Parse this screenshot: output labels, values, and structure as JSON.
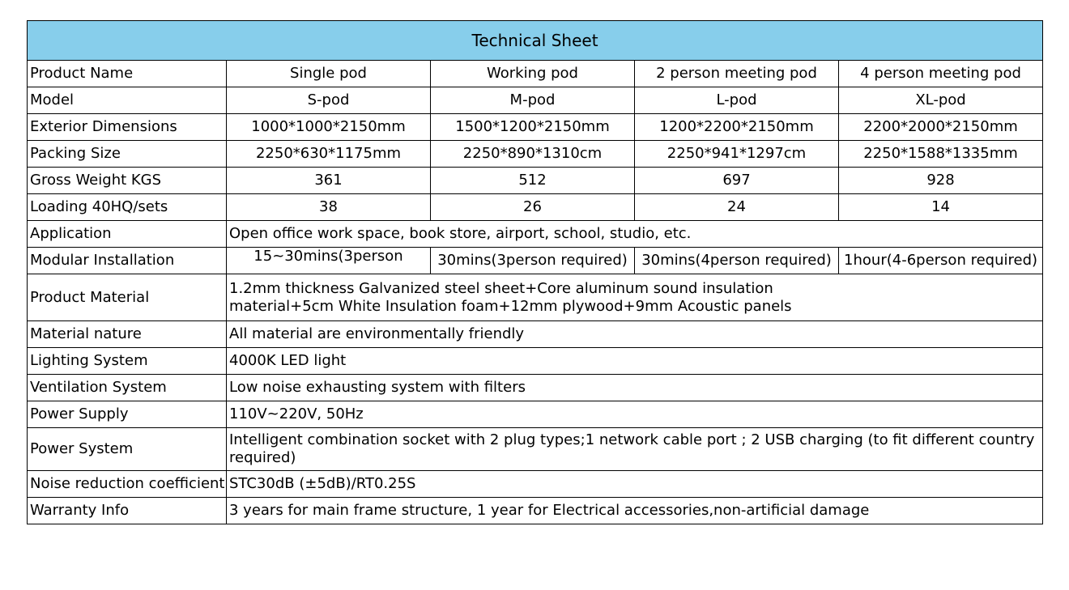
{
  "title": "Technical Sheet",
  "rows": {
    "product_name": {
      "label": "Product Name",
      "values": [
        "Single pod",
        "Working pod",
        "2 person meeting pod",
        "4 person meeting pod"
      ]
    },
    "model": {
      "label": "Model",
      "values": [
        "S-pod",
        "M-pod",
        "L-pod",
        "XL-pod"
      ]
    },
    "exterior_dimensions": {
      "label": "Exterior Dimensions",
      "values": [
        "1000*1000*2150mm",
        "1500*1200*2150mm",
        "1200*2200*2150mm",
        "2200*2000*2150mm"
      ]
    },
    "packing_size": {
      "label": "Packing Size",
      "values": [
        "2250*630*1175mm",
        "2250*890*1310cm",
        "2250*941*1297cm",
        "2250*1588*1335mm"
      ]
    },
    "gross_weight": {
      "label": "Gross Weight KGS",
      "values": [
        "361",
        "512",
        "697",
        "928"
      ]
    },
    "loading": {
      "label": "Loading 40HQ/sets",
      "values": [
        "38",
        "26",
        "24",
        "14"
      ]
    },
    "application": {
      "label": "Application",
      "value": "Open office work space, book store, airport, school, studio, etc."
    },
    "modular_installation": {
      "label": "Modular Installation",
      "values": [
        "15~30mins(3person",
        "30mins(3person required)",
        "30mins(4person required)",
        "1hour(4-6person required)"
      ]
    },
    "product_material": {
      "label": "Product Material",
      "line1": "1.2mm thickness Galvanized steel sheet+Core aluminum sound insulation",
      "line2": "material+5cm White Insulation foam+12mm plywood+9mm Acoustic panels"
    },
    "material_nature": {
      "label": "Material nature",
      "value": "All material are environmentally friendly"
    },
    "lighting_system": {
      "label": "Lighting System",
      "value": "4000K LED light"
    },
    "ventilation_system": {
      "label": "Ventilation System",
      "value": "Low noise exhausting system with filters"
    },
    "power_supply": {
      "label": "Power Supply",
      "value": "110V~220V, 50Hz"
    },
    "power_system": {
      "label": "Power System",
      "line1": "Intelligent combination socket with 2 plug types;1 network cable port ; 2 USB charging (to fit different country",
      "line2": "required)"
    },
    "noise_reduction": {
      "label": "Noise reduction coefficient",
      "value": "STC30dB (±5dB)/RT0.25S"
    },
    "warranty": {
      "label": "Warranty Info",
      "value": "3 years for main frame structure, 1 year for Electrical accessories,non-artificial damage"
    }
  },
  "colors": {
    "header_background": "#87ceeb",
    "border": "#000000"
  }
}
